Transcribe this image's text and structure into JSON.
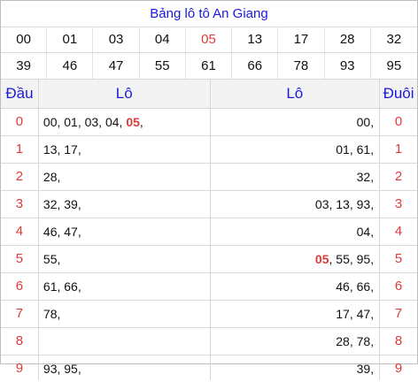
{
  "title": "Bảng lô tô An Giang",
  "results": {
    "row1": [
      "00",
      "01",
      "03",
      "04",
      "05",
      "13",
      "17",
      "28",
      "32"
    ],
    "row2": [
      "39",
      "46",
      "47",
      "55",
      "61",
      "66",
      "78",
      "93",
      "95"
    ],
    "special": "05"
  },
  "headers": {
    "dau": "Đầu",
    "lo_left": "Lô",
    "lo_right": "Lô",
    "duoi": "Đuôi"
  },
  "dau_rows": [
    {
      "digit": "0",
      "pre": "00, 01, 03, 04, ",
      "hl": "05",
      "post": ","
    },
    {
      "digit": "1",
      "pre": "13, 17,",
      "hl": "",
      "post": ""
    },
    {
      "digit": "2",
      "pre": "28,",
      "hl": "",
      "post": ""
    },
    {
      "digit": "3",
      "pre": "32, 39,",
      "hl": "",
      "post": ""
    },
    {
      "digit": "4",
      "pre": "46, 47,",
      "hl": "",
      "post": ""
    },
    {
      "digit": "5",
      "pre": "55,",
      "hl": "",
      "post": ""
    },
    {
      "digit": "6",
      "pre": "61, 66,",
      "hl": "",
      "post": ""
    },
    {
      "digit": "7",
      "pre": "78,",
      "hl": "",
      "post": ""
    },
    {
      "digit": "8",
      "pre": "",
      "hl": "",
      "post": ""
    },
    {
      "digit": "9",
      "pre": "93, 95,",
      "hl": "",
      "post": ""
    }
  ],
  "duoi_rows": [
    {
      "digit": "0",
      "pre": "",
      "hl": "",
      "post": "00,"
    },
    {
      "digit": "1",
      "pre": "",
      "hl": "",
      "post": "01, 61,"
    },
    {
      "digit": "2",
      "pre": "",
      "hl": "",
      "post": "32,"
    },
    {
      "digit": "3",
      "pre": "",
      "hl": "",
      "post": "03, 13, 93,"
    },
    {
      "digit": "4",
      "pre": "",
      "hl": "",
      "post": "04,"
    },
    {
      "digit": "5",
      "pre": "",
      "hl": "05",
      "post": ", 55, 95,"
    },
    {
      "digit": "6",
      "pre": "",
      "hl": "",
      "post": "46, 66,"
    },
    {
      "digit": "7",
      "pre": "",
      "hl": "",
      "post": "17, 47,"
    },
    {
      "digit": "8",
      "pre": "",
      "hl": "",
      "post": "28, 78,"
    },
    {
      "digit": "9",
      "pre": "",
      "hl": "",
      "post": "39,"
    }
  ]
}
